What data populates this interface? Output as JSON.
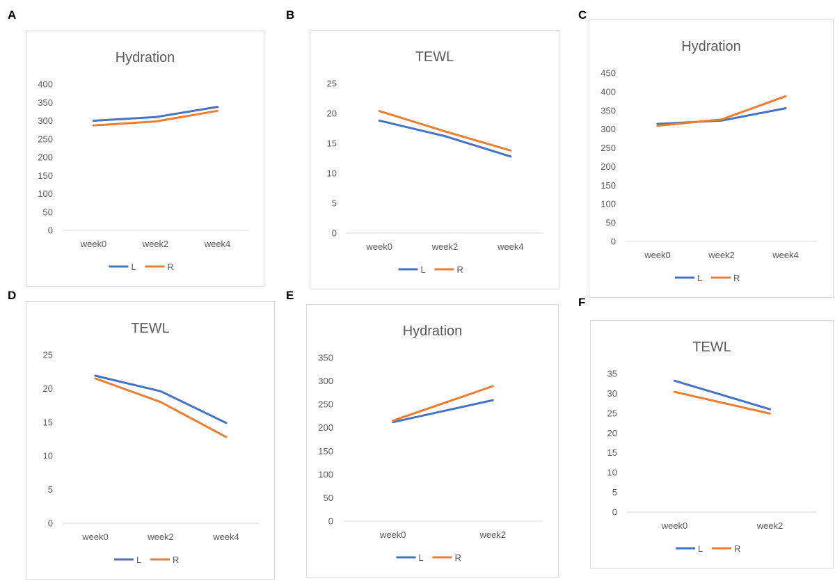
{
  "panels": [
    {
      "letter": "A"
    },
    {
      "letter": "B"
    },
    {
      "letter": "C"
    },
    {
      "letter": "D"
    },
    {
      "letter": "E"
    },
    {
      "letter": "F"
    }
  ],
  "colors": {
    "L": "#4472C4",
    "R": "#ED7D31",
    "axis_text": "#595959",
    "title_text": "#595959",
    "axis_line": "#d9d9d9"
  },
  "chart_data": [
    {
      "panel": "A",
      "type": "line",
      "title": "Hydration",
      "categories": [
        "week0",
        "week2",
        "week4"
      ],
      "ylim": [
        0,
        400
      ],
      "yticks": [
        0,
        50,
        100,
        150,
        200,
        250,
        300,
        350,
        400
      ],
      "series": [
        {
          "name": "L",
          "values": [
            300,
            310,
            338
          ]
        },
        {
          "name": "R",
          "values": [
            287,
            298,
            327
          ]
        }
      ],
      "legend": "bottom",
      "grid": false
    },
    {
      "panel": "B",
      "type": "line",
      "title": "TEWL",
      "categories": [
        "week0",
        "week2",
        "week4"
      ],
      "ylim": [
        0,
        25
      ],
      "yticks": [
        0,
        5,
        10,
        15,
        20,
        25
      ],
      "series": [
        {
          "name": "L",
          "values": [
            18.8,
            16.2,
            12.8
          ]
        },
        {
          "name": "R",
          "values": [
            20.4,
            17.0,
            13.8
          ]
        }
      ],
      "legend": "bottom",
      "grid": false
    },
    {
      "panel": "C",
      "type": "line",
      "title": "Hydration",
      "categories": [
        "week0",
        "week2",
        "week4"
      ],
      "ylim": [
        0,
        450
      ],
      "yticks": [
        0,
        50,
        100,
        150,
        200,
        250,
        300,
        350,
        400,
        450
      ],
      "series": [
        {
          "name": "L",
          "values": [
            314,
            323,
            356
          ]
        },
        {
          "name": "R",
          "values": [
            309,
            326,
            388
          ]
        }
      ],
      "legend": "bottom",
      "grid": false
    },
    {
      "panel": "D",
      "type": "line",
      "title": "TEWL",
      "categories": [
        "week0",
        "week2",
        "week4"
      ],
      "ylim": [
        0,
        25
      ],
      "yticks": [
        0,
        5,
        10,
        15,
        20,
        25
      ],
      "series": [
        {
          "name": "L",
          "values": [
            21.9,
            19.6,
            14.9
          ]
        },
        {
          "name": "R",
          "values": [
            21.5,
            18.0,
            12.8
          ]
        }
      ],
      "legend": "bottom",
      "grid": false
    },
    {
      "panel": "E",
      "type": "line",
      "title": "Hydration",
      "categories": [
        "week0",
        "week2"
      ],
      "ylim": [
        0,
        350
      ],
      "yticks": [
        0,
        50,
        100,
        150,
        200,
        250,
        300,
        350
      ],
      "series": [
        {
          "name": "L",
          "values": [
            212,
            259
          ]
        },
        {
          "name": "R",
          "values": [
            215,
            289
          ]
        }
      ],
      "legend": "bottom",
      "grid": false
    },
    {
      "panel": "F",
      "type": "line",
      "title": "TEWL",
      "categories": [
        "week0",
        "week2"
      ],
      "ylim": [
        0,
        35
      ],
      "yticks": [
        0,
        5,
        10,
        15,
        20,
        25,
        30,
        35
      ],
      "series": [
        {
          "name": "L",
          "values": [
            33.2,
            26.0
          ]
        },
        {
          "name": "R",
          "values": [
            30.4,
            24.9
          ]
        }
      ],
      "legend": "bottom",
      "grid": false
    }
  ]
}
